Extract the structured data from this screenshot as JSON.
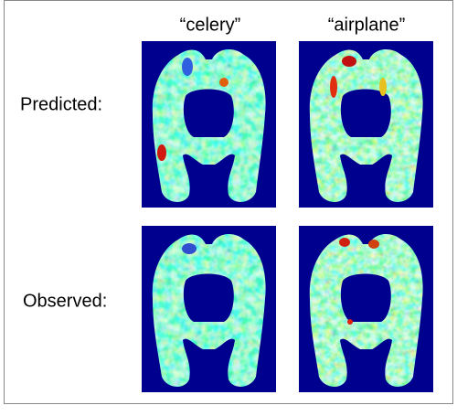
{
  "column_labels": [
    "“celery”",
    "“airplane”"
  ],
  "row_labels": [
    "Predicted:",
    "Observed:"
  ]
}
